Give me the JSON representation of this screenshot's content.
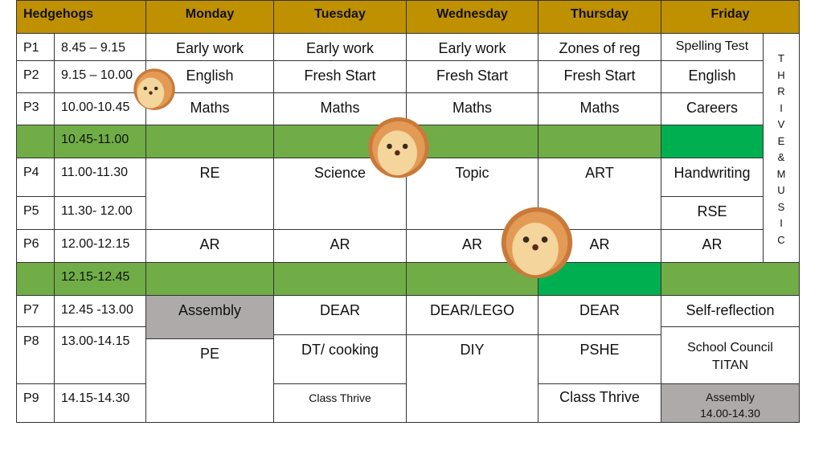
{
  "header": {
    "title": "Hedgehogs",
    "days": [
      "Monday",
      "Tuesday",
      "Wednesday",
      "Thursday",
      "Friday"
    ]
  },
  "periods": [
    {
      "p": "P1",
      "time": "8.45 – 9.15"
    },
    {
      "p": "P2",
      "time": "9.15 – 10.00"
    },
    {
      "p": "P3",
      "time": "10.00-10.45"
    },
    {
      "p": "",
      "time": "10.45-11.00"
    },
    {
      "p": "P4",
      "time": "11.00-11.30"
    },
    {
      "p": "P5",
      "time": "11.30- 12.00"
    },
    {
      "p": "P6",
      "time": "12.00-12.15"
    },
    {
      "p": "",
      "time": "12.15-12.45"
    },
    {
      "p": "P7",
      "time": "12.45 -13.00"
    },
    {
      "p": "P8",
      "time": "13.00-14.15"
    },
    {
      "p": "P9",
      "time": "14.15-14.30"
    }
  ],
  "monday": {
    "p1": "Early work",
    "p2": "English",
    "p3": "Maths",
    "p4": "RE",
    "p6": "AR",
    "p7": "Assembly",
    "p8": "PE"
  },
  "tuesday": {
    "p1": "Early work",
    "p2": "Fresh Start",
    "p3": "Maths",
    "p4": "Science",
    "p6": "AR",
    "p7": "DEAR",
    "p8": "DT/ cooking",
    "p9": "Class Thrive"
  },
  "wednesday": {
    "p1": "Early work",
    "p2": "Fresh Start",
    "p3": "Maths",
    "p4": "Topic",
    "p6": "AR",
    "p7": "DEAR/LEGO",
    "p8": "DIY"
  },
  "thursday": {
    "p1": "Zones of reg",
    "p2": "Fresh Start",
    "p3": "Maths",
    "p4": "ART",
    "p6": "AR",
    "p7": "DEAR",
    "p8": "PSHE",
    "p9": "Class Thrive"
  },
  "friday": {
    "p1": "Spelling Test",
    "p2": "English",
    "p3": "Careers",
    "p4": "Handwriting",
    "p5": "RSE",
    "p6": "AR",
    "p7": "Self-reflection",
    "p8a": "School Council",
    "p8b": "TITAN",
    "p9a": "Assembly",
    "p9b": "14.00-14.30"
  },
  "side_label": [
    "T",
    "H",
    "R",
    "I",
    "V",
    "E",
    "&",
    "M",
    "U",
    "S",
    "I",
    "C"
  ],
  "colors": {
    "header": "#bf9000",
    "break": "#70ad47",
    "highlight": "#00b050",
    "assembly": "#aeaaaa"
  }
}
